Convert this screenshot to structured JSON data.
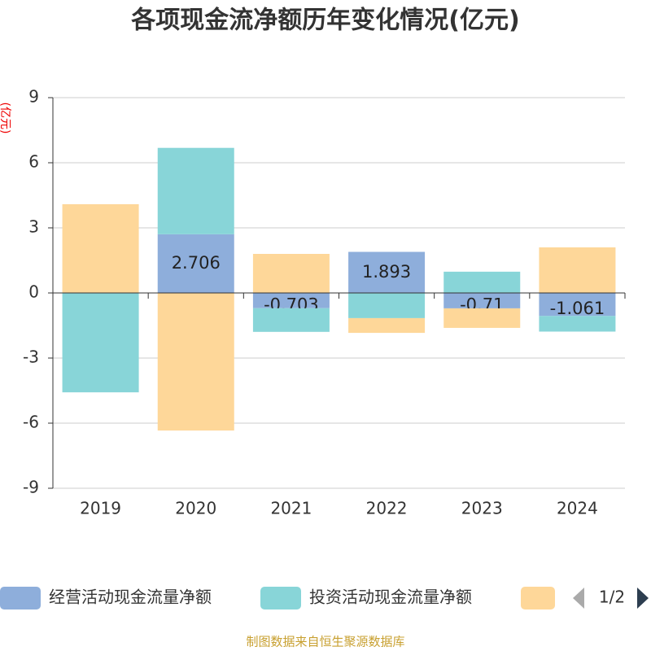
{
  "chart_data": {
    "type": "stacked-bar",
    "title": "各项现金流净额历年变化情况(亿元)",
    "y_label": "(亿元)",
    "categories": [
      "2019",
      "2020",
      "2021",
      "2022",
      "2023",
      "2024"
    ],
    "series": [
      {
        "name": "经营活动现金流量净额",
        "color": "#8eaedb",
        "values": [
          null,
          2.706,
          -0.703,
          1.893,
          -0.71,
          -1.061
        ],
        "labels": true
      },
      {
        "name": "投资活动现金流量净额",
        "color": "#88d5d8",
        "values": [
          -4.58,
          3.98,
          -1.09,
          -1.16,
          0.98,
          -0.72
        ]
      },
      {
        "color": "#fed799",
        "values": [
          4.09,
          -6.34,
          1.8,
          -0.68,
          -0.9,
          2.1
        ]
      }
    ],
    "ylim": [
      -9,
      9
    ],
    "yticks": [
      -9,
      -6,
      -3,
      0,
      3,
      6,
      9
    ],
    "grid": true,
    "legend_page": "1/2",
    "source": "制图数据来自恒生聚源数据库"
  }
}
